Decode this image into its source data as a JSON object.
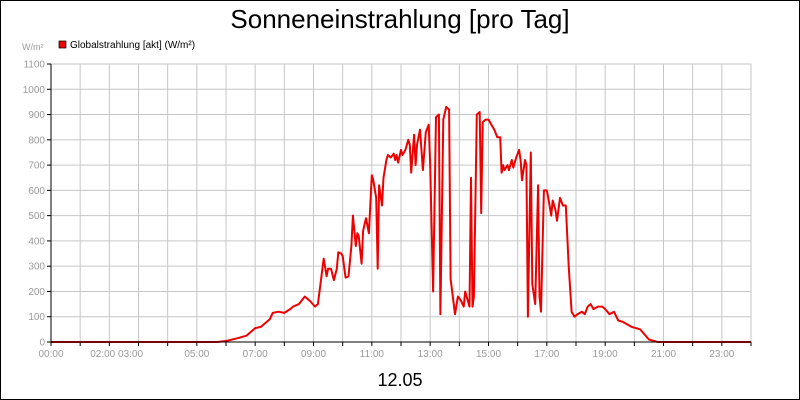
{
  "chart_data": {
    "type": "line",
    "title": "Sonneneinstrahlung [pro Tag]",
    "ylabel": "W/m²",
    "xlabel": "12.05",
    "ylim": [
      0,
      1100
    ],
    "yticks": [
      0,
      100,
      200,
      300,
      400,
      500,
      600,
      700,
      800,
      900,
      1000,
      1100
    ],
    "xlim": [
      0,
      24
    ],
    "xticks": [
      {
        "h": 0,
        "label": "00:00"
      },
      {
        "h": 2.25,
        "label": "02:00 03:00"
      },
      {
        "h": 5,
        "label": "05:00"
      },
      {
        "h": 7,
        "label": "07:00"
      },
      {
        "h": 9,
        "label": "09:00"
      },
      {
        "h": 11,
        "label": "11:00"
      },
      {
        "h": 13,
        "label": "13:00"
      },
      {
        "h": 15,
        "label": "15:00"
      },
      {
        "h": 17,
        "label": "17:00"
      },
      {
        "h": 19,
        "label": "19:00"
      },
      {
        "h": 21,
        "label": "21:00"
      },
      {
        "h": 23,
        "label": "23:00"
      }
    ],
    "grid": true,
    "legend_position": "top-left",
    "series": [
      {
        "name": "Globalstrahlung [akt] (W/m²)",
        "color": "#ee0000",
        "points": [
          [
            0.0,
            0
          ],
          [
            5.7,
            0
          ],
          [
            6.0,
            4
          ],
          [
            6.4,
            15
          ],
          [
            6.7,
            25
          ],
          [
            7.0,
            55
          ],
          [
            7.2,
            60
          ],
          [
            7.5,
            90
          ],
          [
            7.6,
            115
          ],
          [
            7.8,
            120
          ],
          [
            8.0,
            115
          ],
          [
            8.2,
            130
          ],
          [
            8.3,
            140
          ],
          [
            8.5,
            150
          ],
          [
            8.7,
            180
          ],
          [
            8.9,
            160
          ],
          [
            9.05,
            140
          ],
          [
            9.15,
            150
          ],
          [
            9.35,
            330
          ],
          [
            9.45,
            260
          ],
          [
            9.5,
            290
          ],
          [
            9.6,
            290
          ],
          [
            9.7,
            245
          ],
          [
            9.8,
            290
          ],
          [
            9.85,
            355
          ],
          [
            9.95,
            350
          ],
          [
            10.0,
            340
          ],
          [
            10.1,
            255
          ],
          [
            10.2,
            260
          ],
          [
            10.3,
            380
          ],
          [
            10.35,
            500
          ],
          [
            10.45,
            380
          ],
          [
            10.5,
            430
          ],
          [
            10.55,
            420
          ],
          [
            10.65,
            310
          ],
          [
            10.7,
            440
          ],
          [
            10.8,
            490
          ],
          [
            10.9,
            430
          ],
          [
            11.0,
            660
          ],
          [
            11.05,
            640
          ],
          [
            11.15,
            570
          ],
          [
            11.2,
            290
          ],
          [
            11.25,
            620
          ],
          [
            11.35,
            540
          ],
          [
            11.4,
            650
          ],
          [
            11.5,
            720
          ],
          [
            11.55,
            740
          ],
          [
            11.65,
            730
          ],
          [
            11.75,
            745
          ],
          [
            11.8,
            720
          ],
          [
            11.85,
            740
          ],
          [
            11.9,
            710
          ],
          [
            12.0,
            760
          ],
          [
            12.05,
            740
          ],
          [
            12.15,
            760
          ],
          [
            12.25,
            800
          ],
          [
            12.3,
            780
          ],
          [
            12.35,
            670
          ],
          [
            12.45,
            820
          ],
          [
            12.5,
            700
          ],
          [
            12.55,
            780
          ],
          [
            12.65,
            840
          ],
          [
            12.75,
            680
          ],
          [
            12.85,
            830
          ],
          [
            12.95,
            860
          ],
          [
            13.0,
            700
          ],
          [
            13.1,
            200
          ],
          [
            13.2,
            890
          ],
          [
            13.3,
            900
          ],
          [
            13.35,
            110
          ],
          [
            13.45,
            880
          ],
          [
            13.55,
            930
          ],
          [
            13.65,
            920
          ],
          [
            13.7,
            250
          ],
          [
            13.85,
            110
          ],
          [
            13.95,
            180
          ],
          [
            14.05,
            165
          ],
          [
            14.15,
            140
          ],
          [
            14.2,
            200
          ],
          [
            14.35,
            140
          ],
          [
            14.4,
            650
          ],
          [
            14.45,
            140
          ],
          [
            14.5,
            180
          ],
          [
            14.6,
            900
          ],
          [
            14.7,
            910
          ],
          [
            14.75,
            510
          ],
          [
            14.8,
            870
          ],
          [
            14.9,
            880
          ],
          [
            15.0,
            880
          ],
          [
            15.1,
            860
          ],
          [
            15.2,
            840
          ],
          [
            15.3,
            810
          ],
          [
            15.4,
            810
          ],
          [
            15.45,
            670
          ],
          [
            15.5,
            700
          ],
          [
            15.55,
            680
          ],
          [
            15.65,
            700
          ],
          [
            15.7,
            680
          ],
          [
            15.8,
            720
          ],
          [
            15.85,
            690
          ],
          [
            15.95,
            730
          ],
          [
            16.05,
            760
          ],
          [
            16.1,
            720
          ],
          [
            16.15,
            640
          ],
          [
            16.25,
            720
          ],
          [
            16.3,
            700
          ],
          [
            16.35,
            100
          ],
          [
            16.45,
            750
          ],
          [
            16.5,
            230
          ],
          [
            16.6,
            150
          ],
          [
            16.7,
            620
          ],
          [
            16.75,
            180
          ],
          [
            16.8,
            120
          ],
          [
            16.9,
            600
          ],
          [
            17.0,
            600
          ],
          [
            17.05,
            570
          ],
          [
            17.15,
            500
          ],
          [
            17.2,
            560
          ],
          [
            17.3,
            520
          ],
          [
            17.35,
            480
          ],
          [
            17.45,
            570
          ],
          [
            17.55,
            540
          ],
          [
            17.65,
            540
          ],
          [
            17.75,
            300
          ],
          [
            17.85,
            120
          ],
          [
            17.95,
            100
          ],
          [
            18.05,
            110
          ],
          [
            18.2,
            120
          ],
          [
            18.3,
            110
          ],
          [
            18.4,
            140
          ],
          [
            18.5,
            150
          ],
          [
            18.6,
            130
          ],
          [
            18.75,
            140
          ],
          [
            18.9,
            140
          ],
          [
            19.0,
            130
          ],
          [
            19.15,
            110
          ],
          [
            19.3,
            120
          ],
          [
            19.45,
            85
          ],
          [
            19.6,
            80
          ],
          [
            19.75,
            70
          ],
          [
            19.9,
            60
          ],
          [
            20.05,
            55
          ],
          [
            20.2,
            50
          ],
          [
            20.35,
            30
          ],
          [
            20.5,
            10
          ],
          [
            20.65,
            5
          ],
          [
            20.8,
            0
          ],
          [
            24.0,
            0
          ]
        ]
      }
    ]
  }
}
